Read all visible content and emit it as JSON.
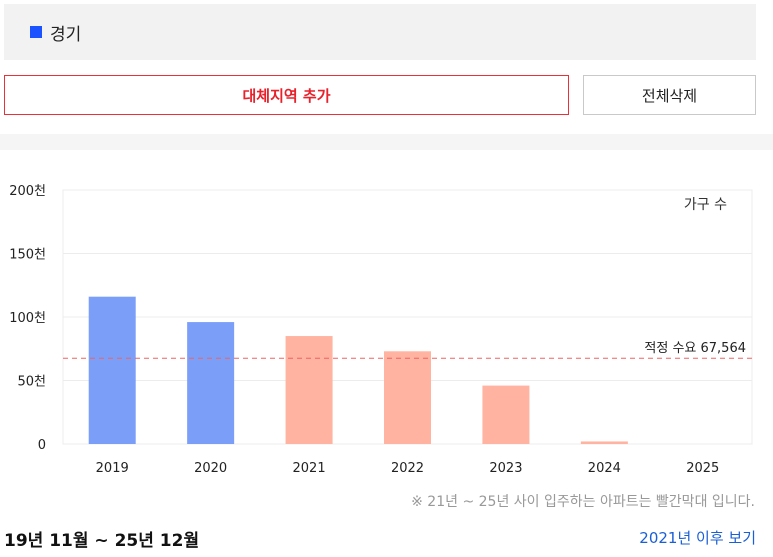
{
  "region": {
    "label": "경기",
    "swatch_color": "#1a53ff"
  },
  "buttons": {
    "add_label": "대체지역 추가",
    "delete_label": "전체삭제"
  },
  "chart_data": {
    "type": "bar",
    "categories": [
      "2019",
      "2020",
      "2021",
      "2022",
      "2023",
      "2024",
      "2025"
    ],
    "values": [
      116000,
      96000,
      85000,
      73000,
      46000,
      2000,
      0
    ],
    "series_colors": [
      "#7b9ef8",
      "#7b9ef8",
      "#ffb3a0",
      "#ffb3a0",
      "#ffb3a0",
      "#ffb3a0",
      "#ffb3a0"
    ],
    "ylim": [
      0,
      200000
    ],
    "y_ticks": [
      {
        "value": 0,
        "label": "0"
      },
      {
        "value": 50000,
        "label": "50천"
      },
      {
        "value": 100000,
        "label": "100천"
      },
      {
        "value": 150000,
        "label": "150천"
      },
      {
        "value": 200000,
        "label": "200천"
      }
    ],
    "legend_label": "가구 수",
    "reference_line": {
      "value": 67564,
      "label": "적정 수요 67,564",
      "color": "#f06262"
    },
    "grid": true
  },
  "note": "※ 21년 ~ 25년 사이 입주하는 아파트는 빨간막대 입니다.",
  "period": "19년 11월 ~ 25년 12월",
  "more_link": "2021년 이후 보기"
}
